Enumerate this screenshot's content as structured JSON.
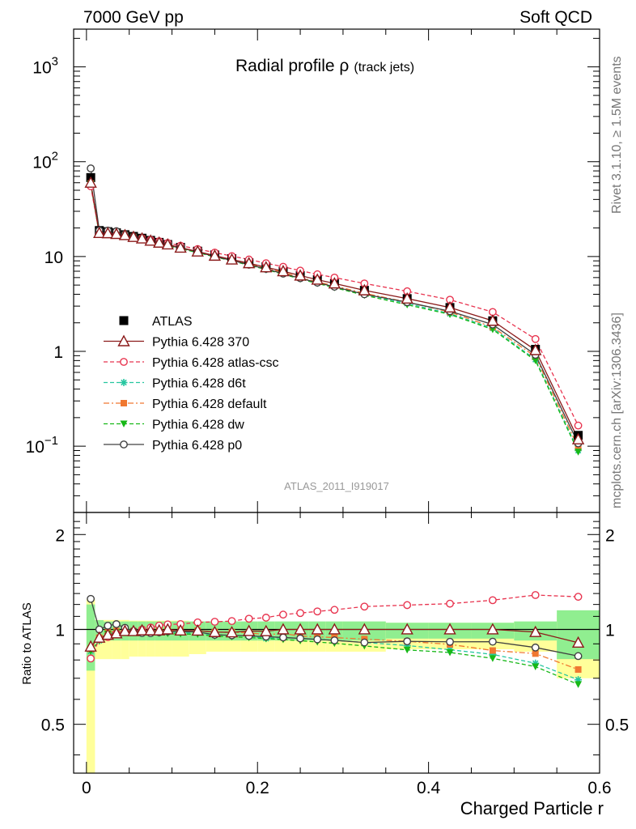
{
  "header": {
    "left": "7000 GeV pp",
    "right": "Soft QCD"
  },
  "side_text": {
    "rivet": "Rivet 3.1.10, ≥ 1.5M events",
    "mcplots": "mcplots.cern.ch [arXiv:1306.3436]"
  },
  "colors": {
    "ATLAS": "#000000",
    "p370": "#8b1a1a",
    "atlas_csc": "#e8344f",
    "d6t": "#26c6a0",
    "default": "#f07830",
    "dw": "#17b817",
    "p0": "#404040",
    "band_inner": "#90ee90",
    "band_outer": "#ffff9a"
  },
  "chart_data": {
    "type": "line",
    "title": "Radial profile ρ (track jets)",
    "title_main": "Radial profile ",
    "title_rho": "ρ",
    "title_paren": "(track jets)",
    "analysis_label": "ATLAS_2011_I919017",
    "xlabel": "Charged Particle r",
    "ylabel_ratio": "Ratio to ATLAS",
    "xlim": [
      -0.015,
      0.6
    ],
    "ylim_main": [
      0.02,
      2500
    ],
    "yscale_main": "log",
    "ylim_ratio": [
      0.35,
      2.35
    ],
    "yscale_ratio": "log",
    "legend_placement": "lower-left",
    "xticks": [
      "0",
      "0.2",
      "0.4",
      "0.6"
    ],
    "yticks_main": [
      {
        "base": "10",
        "exp": "3"
      },
      {
        "base": "10",
        "exp": "2"
      },
      {
        "base": "10",
        "exp": ""
      },
      {
        "base": "1",
        "exp": ""
      },
      {
        "base": "10",
        "exp": "−1"
      }
    ],
    "yticks_ratio": [
      "2",
      "1",
      "0.5"
    ],
    "x": [
      0.005,
      0.015,
      0.025,
      0.035,
      0.045,
      0.055,
      0.065,
      0.075,
      0.085,
      0.095,
      0.11,
      0.13,
      0.15,
      0.17,
      0.19,
      0.21,
      0.23,
      0.25,
      0.27,
      0.29,
      0.325,
      0.375,
      0.425,
      0.475,
      0.525,
      0.575
    ],
    "data": {
      "name": "ATLAS",
      "values": [
        68,
        18.8,
        18.3,
        17.8,
        17.0,
        16.3,
        15.6,
        14.8,
        14.1,
        13.4,
        12.5,
        11.4,
        10.4,
        9.5,
        8.6,
        7.8,
        7.0,
        6.3,
        5.7,
        5.2,
        4.4,
        3.6,
        2.9,
        2.1,
        1.05,
        0.13
      ]
    },
    "series": [
      {
        "name": "Pythia 6.428 370",
        "key": "p370",
        "marker": "triangle-open",
        "dash": "solid",
        "values": [
          60,
          17.7,
          17.6,
          17.3,
          16.8,
          16.1,
          15.5,
          14.7,
          14.0,
          13.4,
          12.4,
          11.3,
          10.2,
          9.3,
          8.5,
          7.7,
          7.0,
          6.3,
          5.7,
          5.2,
          4.4,
          3.6,
          2.9,
          2.1,
          1.03,
          0.118
        ]
      },
      {
        "name": "Pythia 6.428 atlas-csc",
        "key": "atlas_csc",
        "marker": "circle-open",
        "dash": "dashed",
        "values": [
          55,
          17.5,
          17.3,
          17.3,
          16.7,
          16.1,
          15.6,
          15.0,
          14.5,
          13.9,
          13.0,
          12.0,
          11.0,
          10.1,
          9.3,
          8.5,
          7.8,
          7.1,
          6.5,
          6.0,
          5.2,
          4.3,
          3.5,
          2.6,
          1.35,
          0.165
        ]
      },
      {
        "name": "Pythia 6.428 d6t",
        "key": "d6t",
        "marker": "star",
        "dash": "dashed",
        "values": [
          58,
          17.3,
          17.8,
          17.4,
          16.8,
          16.0,
          15.3,
          14.5,
          13.8,
          13.2,
          12.2,
          11.1,
          10.0,
          9.1,
          8.2,
          7.3,
          6.6,
          5.9,
          5.3,
          4.8,
          4.0,
          3.2,
          2.5,
          1.75,
          0.82,
          0.09
        ]
      },
      {
        "name": "Pythia 6.428 default",
        "key": "default",
        "marker": "square",
        "dash": "dashdot",
        "values": [
          59,
          17.7,
          17.9,
          17.6,
          16.9,
          16.1,
          15.5,
          14.7,
          14.0,
          13.3,
          12.4,
          11.3,
          10.2,
          9.3,
          8.4,
          7.5,
          6.8,
          6.0,
          5.4,
          4.9,
          4.1,
          3.3,
          2.6,
          1.8,
          0.88,
          0.097
        ]
      },
      {
        "name": "Pythia 6.428 dw",
        "key": "dw",
        "marker": "triangle-down",
        "dash": "dashed",
        "values": [
          58,
          17.3,
          17.7,
          17.4,
          16.7,
          15.9,
          15.2,
          14.4,
          13.7,
          13.0,
          12.1,
          11.0,
          9.9,
          9.0,
          8.1,
          7.3,
          6.5,
          5.8,
          5.2,
          4.7,
          3.9,
          3.1,
          2.45,
          1.7,
          0.8,
          0.087
        ]
      },
      {
        "name": "Pythia 6.428 p0",
        "key": "p0",
        "marker": "circle-open",
        "dash": "solid",
        "values": [
          85,
          18.8,
          18.8,
          18.5,
          17.2,
          16.1,
          15.2,
          14.4,
          13.8,
          13.2,
          12.3,
          11.2,
          10.0,
          9.1,
          8.2,
          7.4,
          6.6,
          5.9,
          5.3,
          4.8,
          4.0,
          3.3,
          2.65,
          1.92,
          0.92,
          0.107
        ]
      }
    ],
    "uncertainty": {
      "x_edges": [
        0.0,
        0.01,
        0.02,
        0.03,
        0.04,
        0.05,
        0.06,
        0.07,
        0.08,
        0.09,
        0.1,
        0.12,
        0.14,
        0.16,
        0.18,
        0.2,
        0.22,
        0.24,
        0.26,
        0.28,
        0.3,
        0.35,
        0.4,
        0.45,
        0.5,
        0.55,
        0.6
      ],
      "stat_frac": [
        0.2,
        0.07,
        0.06,
        0.06,
        0.06,
        0.06,
        0.06,
        0.06,
        0.06,
        0.06,
        0.06,
        0.06,
        0.06,
        0.06,
        0.06,
        0.06,
        0.06,
        0.06,
        0.06,
        0.06,
        0.06,
        0.05,
        0.05,
        0.05,
        0.06,
        0.15
      ],
      "total_frac": [
        0.45,
        0.13,
        0.13,
        0.13,
        0.13,
        0.12,
        0.12,
        0.12,
        0.12,
        0.12,
        0.12,
        0.11,
        0.1,
        0.1,
        0.1,
        0.1,
        0.1,
        0.1,
        0.1,
        0.1,
        0.1,
        0.09,
        0.09,
        0.09,
        0.1,
        0.2
      ]
    }
  }
}
